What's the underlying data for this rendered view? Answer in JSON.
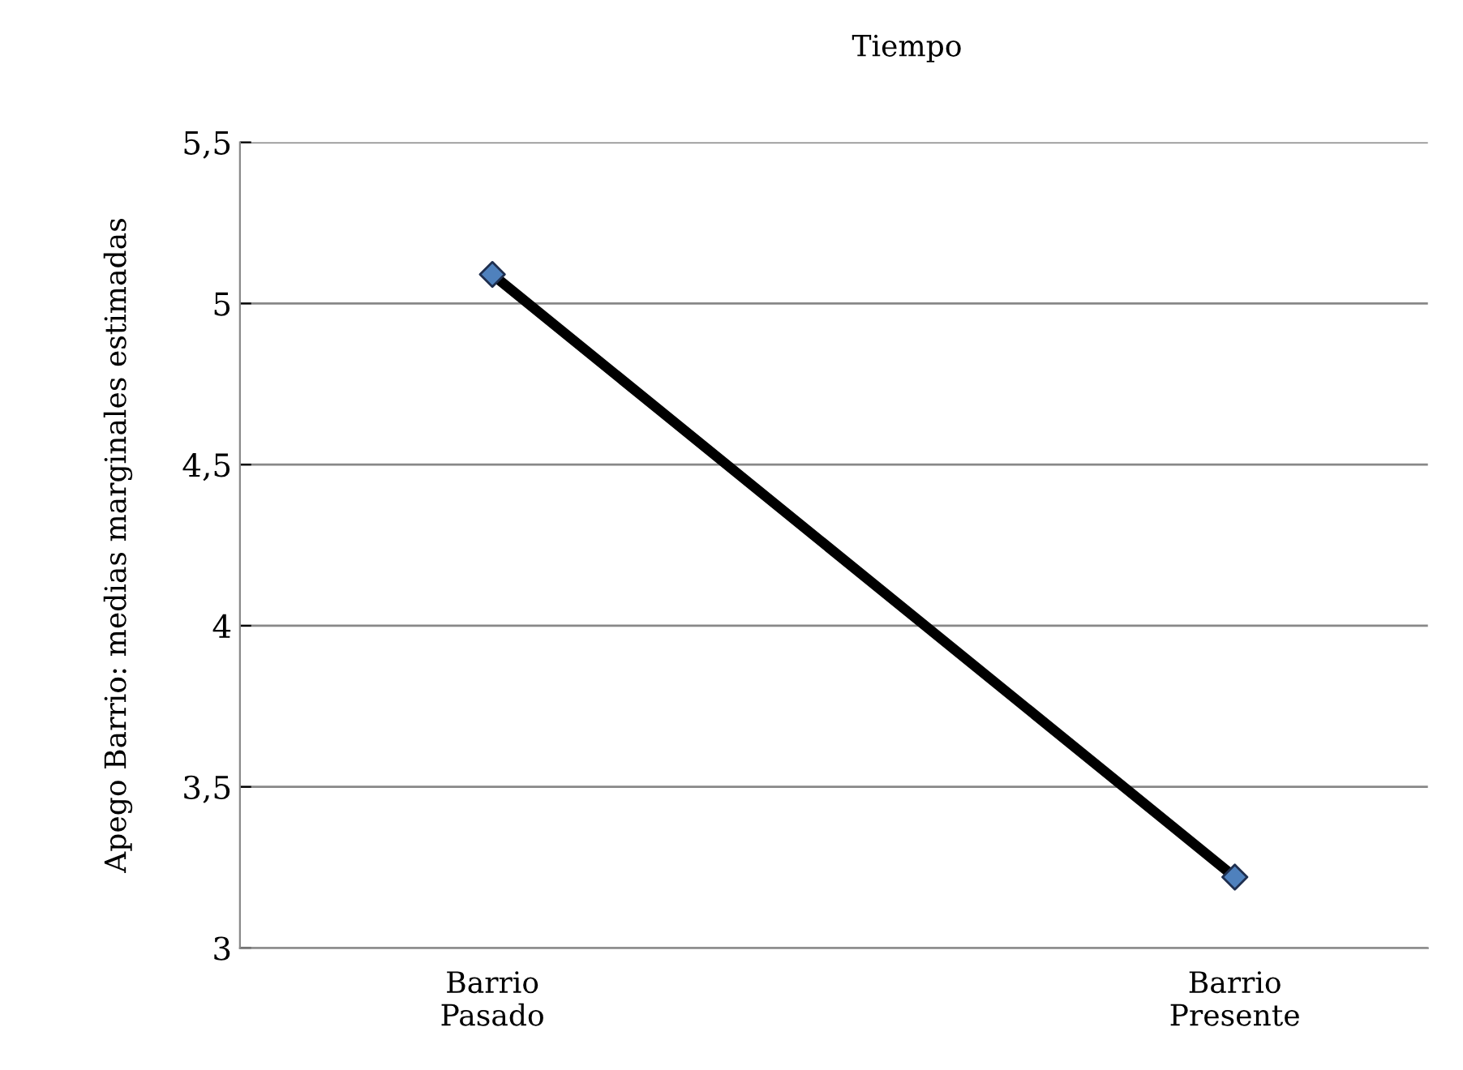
{
  "chart_data": {
    "type": "line",
    "title": "Tiempo",
    "ylabel": "Apego Barrio: medias marginales estimadas",
    "categories": [
      "Barrio\nPasado",
      "Barrio\nPresente"
    ],
    "series": [
      {
        "color": "#000000",
        "colors": [
          "#4f81bd",
          "#4f81bd"
        ],
        "values": [
          5.09,
          3.22
        ]
      }
    ],
    "ylim": [
      3,
      5.5
    ],
    "yticks": [
      3,
      {
        "value": 3.5,
        "label": "3,5"
      },
      4,
      {
        "value": 4.5,
        "label": "4,5"
      },
      5,
      {
        "value": 5.5,
        "label": "5,5"
      }
    ],
    "grid": "y",
    "marker": "diamond",
    "line_style": "solid",
    "legend": false
  }
}
